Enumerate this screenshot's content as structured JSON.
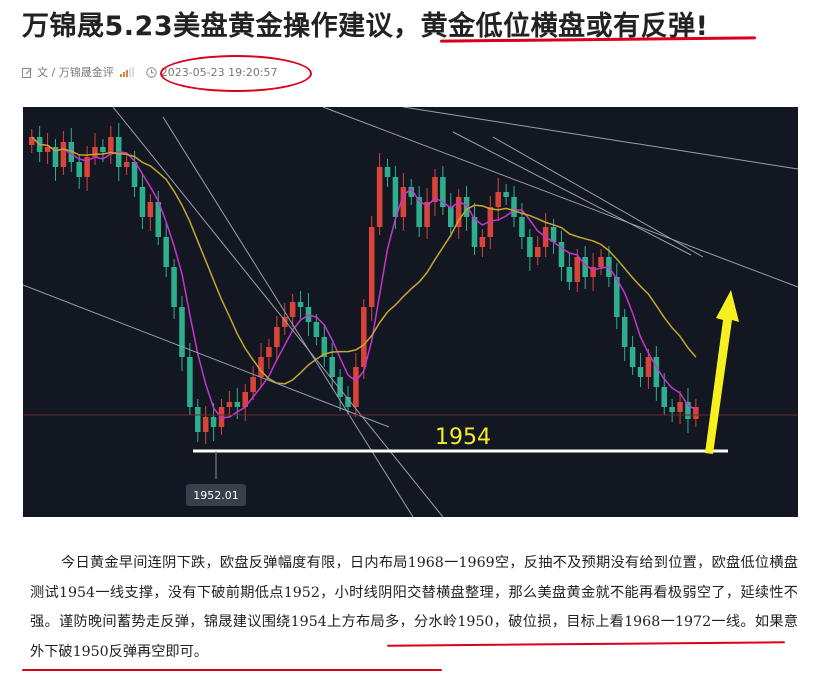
{
  "article_title": {
    "part1": "万锦晟5.23美盘黄金操作建议，",
    "part2": "黄金低位横盘或有反弹!"
  },
  "meta": {
    "author": "文 / 万锦晟金评",
    "datetime": "2023-05-23 19:20:57",
    "edit_icon": "edit-icon",
    "clock_icon": "clock-icon"
  },
  "chart": {
    "price_tag": "1952.01",
    "level_label": "1954",
    "colors": {
      "up": "#d8433a",
      "down": "#2fae8e",
      "ma_fast": "#c534d0",
      "ma_slow": "#c5a72f",
      "support": "#ffffff",
      "arrow": "#f7f020"
    }
  },
  "body": {
    "text": "今日黄金早间连阴下跌，欧盘反弹幅度有限，日内布局1968一1969空，反抽不及预期没有给到位置，欧盘低位横盘测试1954一线支撑，没有下破前期低点1952，小时线阴阳交替横盘整理，那么美盘黄金就不能再看极弱空了，延续性不强。谨防晚间蓄势走反弹，锦晟建议围绕1954上方布局多，分水岭1950，破位损，目标上看1968一1972一线。如果意外下破1950反弹再空即可。"
  }
}
